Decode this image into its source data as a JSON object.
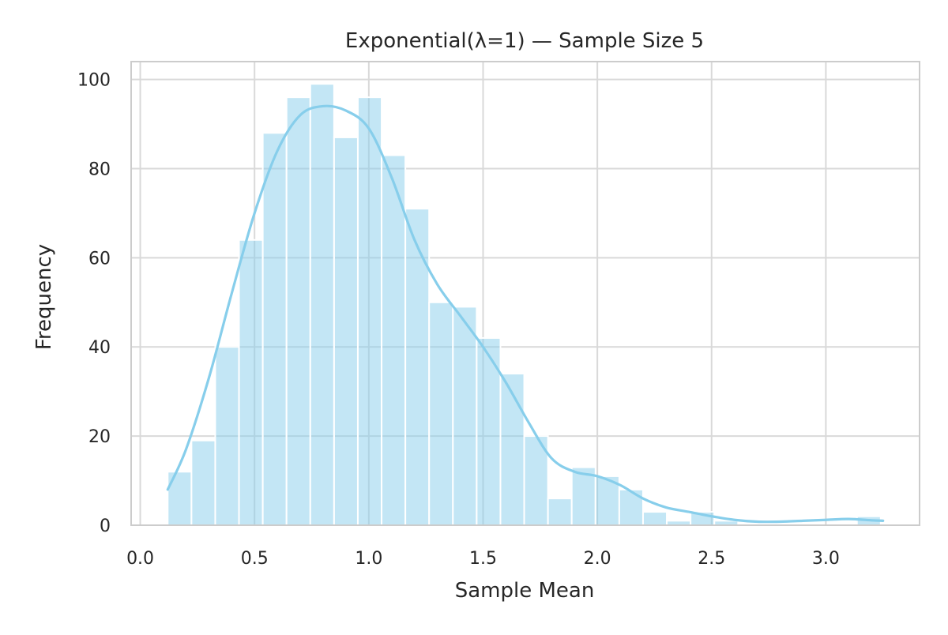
{
  "chart_data": {
    "type": "bar",
    "title": "Exponential(λ=1) — Sample Size 5",
    "xlabel": "Sample Mean",
    "ylabel": "Frequency",
    "xlim": [
      -0.04,
      3.41
    ],
    "ylim": [
      0,
      104
    ],
    "x_ticks": [
      0.0,
      0.5,
      1.0,
      1.5,
      2.0,
      2.5,
      3.0
    ],
    "x_tick_labels": [
      "0.0",
      "0.5",
      "1.0",
      "1.5",
      "2.0",
      "2.5",
      "3.0"
    ],
    "y_ticks": [
      0,
      20,
      40,
      60,
      80,
      100
    ],
    "y_tick_labels": [
      "0",
      "20",
      "40",
      "60",
      "80",
      "100"
    ],
    "grid": true,
    "legend": "none",
    "bin_start": 0.12,
    "bin_width": 0.104,
    "counts": [
      12,
      19,
      40,
      64,
      88,
      96,
      99,
      87,
      96,
      83,
      71,
      50,
      49,
      42,
      34,
      20,
      6,
      13,
      11,
      8,
      3,
      1,
      3,
      1,
      0,
      0,
      0,
      0,
      0,
      2
    ],
    "kde": {
      "x": [
        0.12,
        0.2,
        0.3,
        0.4,
        0.5,
        0.6,
        0.7,
        0.8,
        0.9,
        1.0,
        1.1,
        1.2,
        1.3,
        1.4,
        1.5,
        1.6,
        1.7,
        1.8,
        1.9,
        2.0,
        2.1,
        2.2,
        2.3,
        2.4,
        2.5,
        2.6,
        2.7,
        2.8,
        2.9,
        3.0,
        3.1,
        3.2,
        3.25
      ],
      "y": [
        8,
        17,
        33,
        52,
        70,
        84,
        92,
        94,
        93,
        89,
        78,
        64,
        54,
        47,
        40,
        32,
        23,
        15,
        12,
        11,
        9,
        6,
        4,
        3,
        2,
        1.2,
        0.8,
        0.8,
        1,
        1.2,
        1.4,
        1.1,
        1
      ]
    },
    "colors": {
      "bar": "#87ceeb",
      "bar_opacity": 0.5,
      "kde_line": "#87ceeb",
      "grid": "#d9d9d9",
      "frame": "#cccccc",
      "text": "#262626"
    }
  }
}
